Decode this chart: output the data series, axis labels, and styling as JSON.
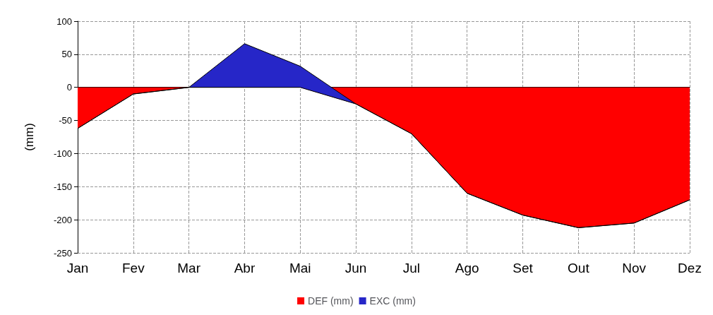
{
  "chart_data": {
    "type": "area",
    "stacked": true,
    "ylabel": "(mm)",
    "categories": [
      "Jan",
      "Fev",
      "Mar",
      "Abr",
      "Mai",
      "Jun",
      "Jul",
      "Ago",
      "Set",
      "Out",
      "Nov",
      "Dez"
    ],
    "series": [
      {
        "name": "DEF (mm)",
        "color": "#ff0000",
        "values": [
          -62,
          -10,
          0,
          0,
          0,
          -25,
          -70,
          -160,
          -193,
          -212,
          -205,
          -170
        ]
      },
      {
        "name": "EXC (mm)",
        "color": "#2626c8",
        "values": [
          0,
          0,
          0,
          66,
          32,
          0,
          0,
          0,
          0,
          0,
          0,
          0
        ]
      }
    ],
    "ylim": [
      -250,
      100
    ],
    "yticks": [
      -250,
      -200,
      -150,
      -100,
      -50,
      0,
      50,
      100
    ],
    "grid": true,
    "legend": "bottom"
  }
}
